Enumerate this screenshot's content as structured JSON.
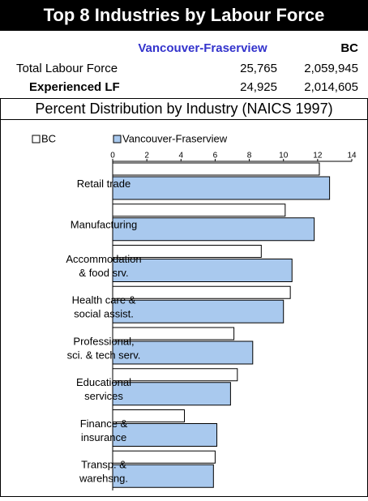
{
  "header": {
    "title": "Top 8 Industries by Labour Force",
    "table": {
      "columns": [
        "Vancouver-Fraserview",
        "BC"
      ],
      "rows": [
        [
          "Total Labour Force",
          "25,765",
          "2,059,945"
        ],
        [
          "Experienced LF",
          "24,925",
          "2,014,605"
        ]
      ]
    },
    "subtitle": "Percent Distribution by Industry (NAICS 1997)"
  },
  "chart_data": {
    "type": "hbar",
    "categories": [
      [
        "Retail trade"
      ],
      [
        "Manufacturing"
      ],
      [
        "Accommodation",
        "& food srv."
      ],
      [
        "Health care &",
        "social assist."
      ],
      [
        "Professional,",
        "sci. & tech serv."
      ],
      [
        "Educational",
        "services"
      ],
      [
        "Finance &",
        "insurance"
      ],
      [
        "Transp. &",
        "warehsng."
      ]
    ],
    "series": [
      {
        "name": "BC",
        "color": "#ffffff",
        "values": [
          12.1,
          10.1,
          8.7,
          10.4,
          7.1,
          7.3,
          4.2,
          6.0
        ]
      },
      {
        "name": "Vancouver-Fraserview",
        "color": "#a9c9ee",
        "values": [
          12.7,
          11.8,
          10.5,
          10.0,
          8.2,
          6.9,
          6.1,
          5.9
        ]
      }
    ],
    "xlim": [
      0,
      14
    ],
    "xticks": [
      0,
      2,
      4,
      6,
      8,
      10,
      12,
      14
    ]
  }
}
